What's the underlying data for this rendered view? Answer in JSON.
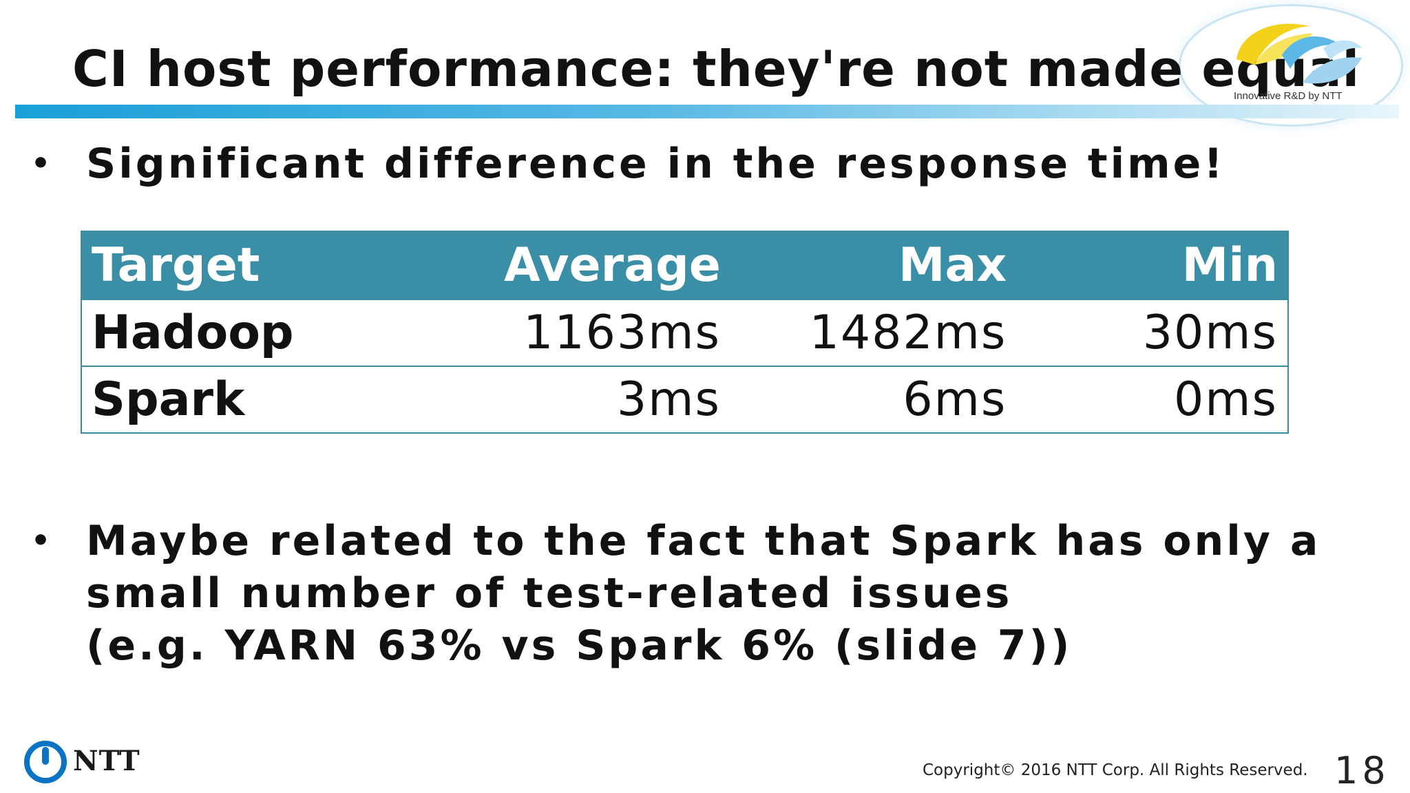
{
  "title": "CI host performance: they're not made equal",
  "branding": {
    "tagline": "Innovative R&D by NTT",
    "company_logo_text": "NTT",
    "accent_color": "#1a9fd8",
    "table_header_color": "#3a8fa6"
  },
  "bullets": [
    {
      "lines": [
        "Significant difference in the response time!"
      ]
    },
    {
      "lines": [
        "Maybe related to the fact that Spark has only a",
        "small number of test-related issues",
        "(e.g. YARN 63% vs Spark 6% (slide 7))"
      ]
    }
  ],
  "table": {
    "headers": [
      "Target",
      "Average",
      "Max",
      "Min"
    ],
    "rows": [
      [
        "Hadoop",
        "1163ms",
        "1482ms",
        "30ms"
      ],
      [
        "Spark",
        "3ms",
        "6ms",
        "0ms"
      ]
    ]
  },
  "footer": {
    "copyright": "Copyright© 2016  NTT Corp. All Rights Reserved.",
    "page_number": "18"
  },
  "icons": {
    "bullet": "bullet-dot-icon",
    "logo": "ntt-circle-logo-icon",
    "swirl": "innovative-swirl-logo-icon"
  }
}
